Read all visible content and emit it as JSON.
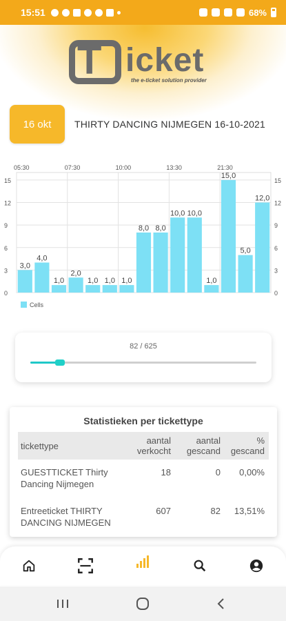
{
  "status_bar": {
    "time": "15:51",
    "battery": "68%",
    "icons_left": [
      "whatsapp-icon",
      "github-icon",
      "instagram-icon",
      "drop-icon",
      "sync-icon",
      "gallery-icon",
      "dot-icon"
    ],
    "icons_right": [
      "alarm-icon",
      "bluetooth-icon",
      "wifi-icon",
      "signal-icon",
      "battery-icon"
    ]
  },
  "logo": {
    "letter": "T",
    "word": "icket",
    "tagline": "the e-ticket solution provider"
  },
  "event": {
    "date_label": "16 okt",
    "title": "THIRTY DANCING NIJMEGEN 16-10-2021"
  },
  "chart_data": {
    "type": "bar",
    "top_axis_labels": [
      "05:30",
      "07:30",
      "10:00",
      "13:30",
      "21:30"
    ],
    "y_ticks": [
      "0",
      "3",
      "6",
      "9",
      "12",
      "15"
    ],
    "ylim": [
      0,
      16
    ],
    "values": [
      3.0,
      4.0,
      1.0,
      2.0,
      1.0,
      1.0,
      1.0,
      8.0,
      8.0,
      10.0,
      10.0,
      1.0,
      15.0,
      5.0,
      12.0
    ],
    "value_labels": [
      "3,0",
      "4,0",
      "1,0",
      "2,0",
      "1,0",
      "1,0",
      "1,0",
      "8,0",
      "8,0",
      "10,0",
      "10,0",
      "1,0",
      "15,0",
      "5,0",
      "12,0"
    ],
    "series": [
      {
        "name": "Cells"
      }
    ],
    "bar_color": "#7de0f5",
    "grid": true,
    "legend_position": "bottom-left"
  },
  "progress": {
    "text": "82 / 625",
    "value": 82,
    "max": 625,
    "color": "#1fc8c8"
  },
  "stats": {
    "title": "Statistieken per tickettype",
    "headers": {
      "type": "tickettype",
      "sold": "aantal verkocht",
      "scanned": "aantal gescand",
      "percent": "% gescand"
    },
    "rows": [
      {
        "type": "GUESTTICKET Thirty Dancing Nijmegen",
        "sold": "18",
        "scanned": "0",
        "percent": "0,00%"
      },
      {
        "type": "Entreeticket THIRTY DANCING NIJMEGEN",
        "sold": "607",
        "scanned": "82",
        "percent": "13,51%"
      }
    ]
  },
  "bottom_nav": {
    "items": [
      "home-icon",
      "scan-icon",
      "stats-icon",
      "search-icon",
      "account-icon"
    ],
    "active": "stats-icon",
    "active_color": "#f6b82a"
  },
  "system_nav": [
    "recents-icon",
    "home-circle-icon",
    "back-icon"
  ]
}
